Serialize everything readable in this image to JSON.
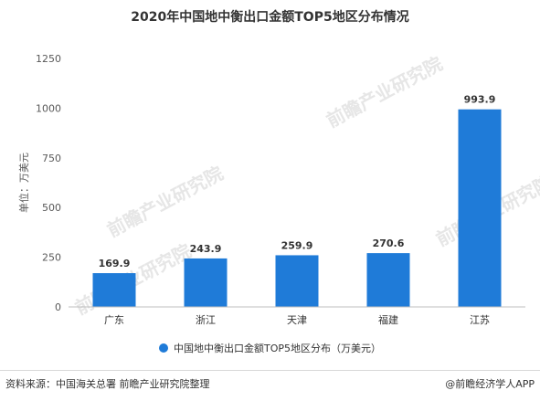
{
  "title": "2020年中国地中衡出口金额TOP5地区分布情况",
  "legend_label": "中国地中衡出口金额TOP5地区分布（万美元）",
  "source_text": "资料来源：中国海关总署 前瞻产业研究院整理",
  "credit_text": "@前瞻经济学人APP",
  "watermark_text": "前瞻产业研究院",
  "colors": {
    "bar": "#1f7bd8",
    "axis": "#bfbfbf",
    "text": "#333333"
  },
  "chart_data": {
    "type": "bar",
    "title": "2020年中国地中衡出口金额TOP5地区分布情况",
    "xlabel": "",
    "ylabel": "单位：万美元",
    "categories": [
      "广东",
      "浙江",
      "天津",
      "福建",
      "江苏"
    ],
    "series": [
      {
        "name": "中国地中衡出口金额TOP5地区分布（万美元）",
        "values": [
          169.9,
          243.9,
          259.9,
          270.6,
          993.9
        ]
      }
    ],
    "ylim": [
      0,
      1250
    ],
    "yticks": [
      0,
      250,
      500,
      750,
      1000,
      1250
    ],
    "grid": false,
    "legend_position": "bottom"
  }
}
